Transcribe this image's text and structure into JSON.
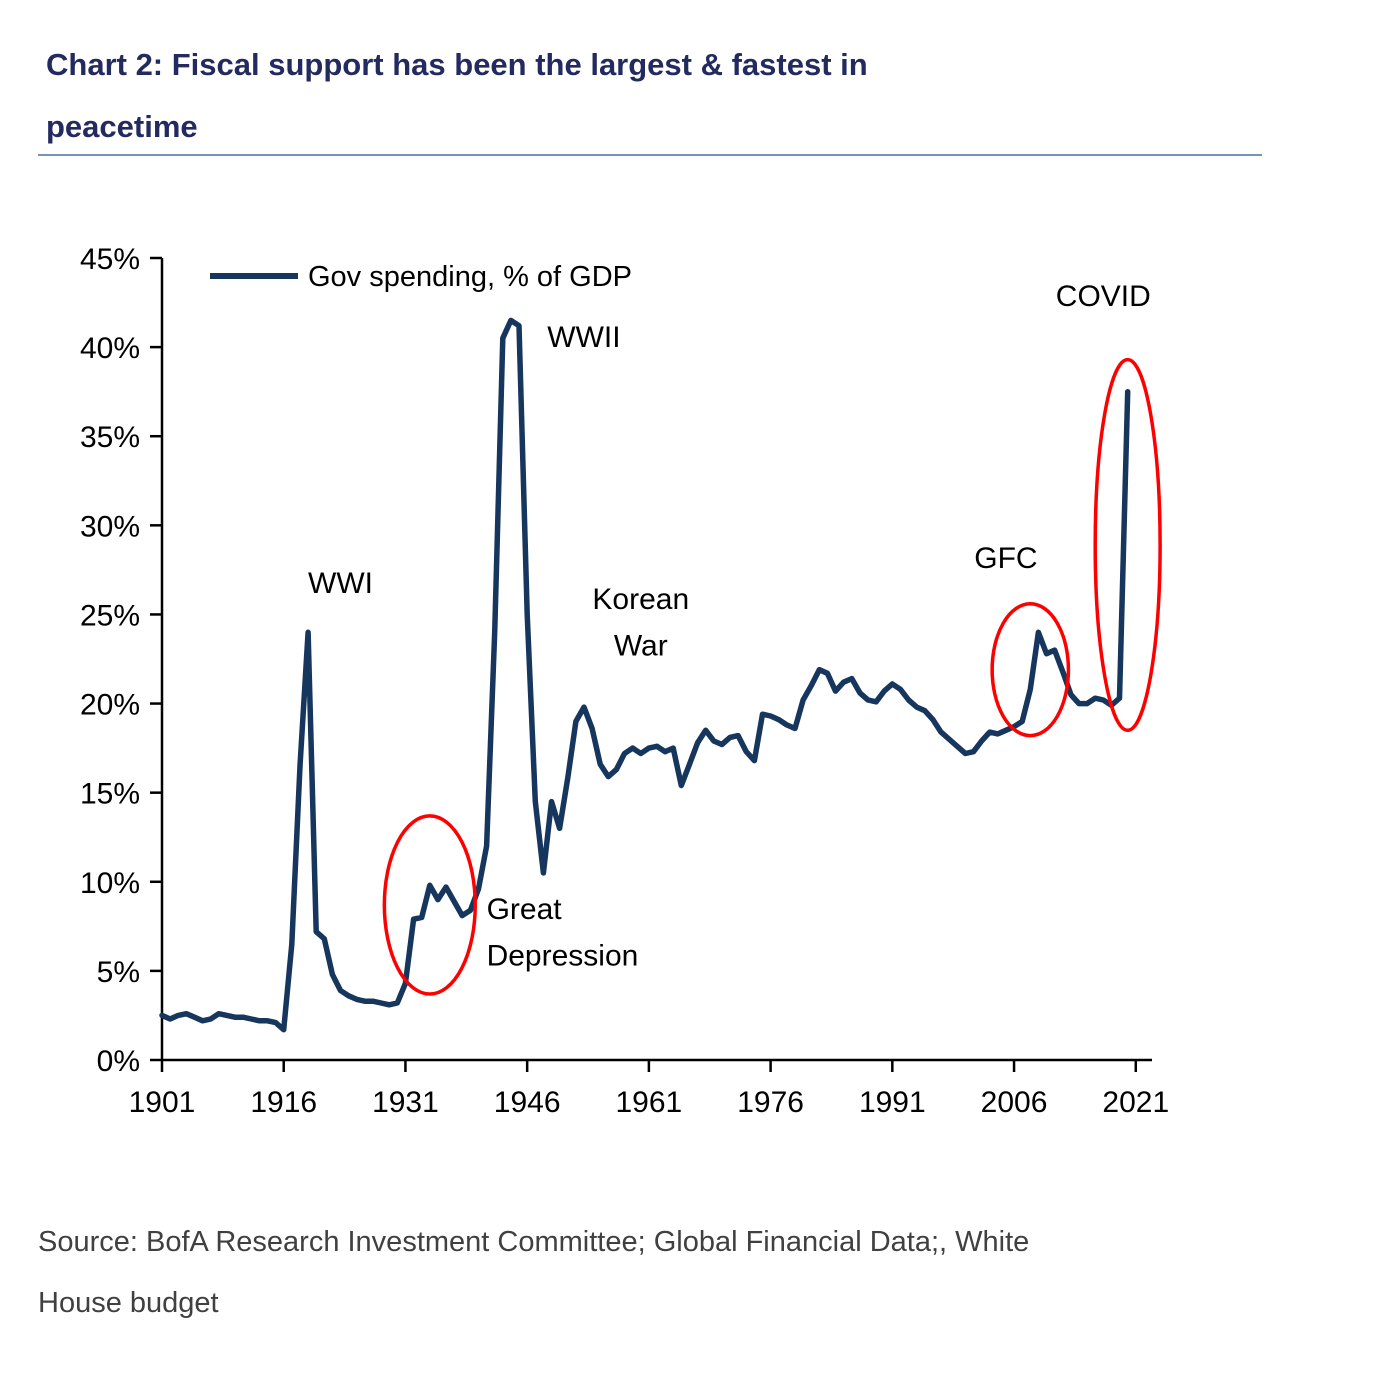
{
  "title": {
    "line1": "Chart 2: Fiscal support has been the largest & fastest in",
    "line2": "peacetime"
  },
  "source": {
    "line1": "Source: BofA Research Investment Committee; Global Financial Data;, White",
    "line2": "House budget"
  },
  "legend": {
    "label": "Gov spending, % of GDP"
  },
  "colors": {
    "line": "#17365d",
    "title": "#232a60",
    "divider": "#7693b8",
    "highlight": "#ff0000",
    "axis": "#000000",
    "tick_text": "#000000",
    "annotation_text": "#000000",
    "source_text": "#404040",
    "background": "#ffffff"
  },
  "chart_data": {
    "type": "line",
    "title": "Chart 2: Fiscal support has been the largest & fastest in peacetime",
    "xlabel": "",
    "ylabel": "Gov spending, % of GDP",
    "x_domain": [
      1901,
      2023
    ],
    "y_domain": [
      0,
      45
    ],
    "x_ticks": [
      1901,
      1916,
      1931,
      1946,
      1961,
      1976,
      1991,
      2006,
      2021
    ],
    "y_ticks": [
      0,
      5,
      10,
      15,
      20,
      25,
      30,
      35,
      40,
      45
    ],
    "y_tick_suffix": "%",
    "grid": false,
    "legend_position": "top-left-inside",
    "series": [
      {
        "name": "Gov spending, % of GDP",
        "points": [
          [
            1901,
            2.5
          ],
          [
            1902,
            2.3
          ],
          [
            1903,
            2.5
          ],
          [
            1904,
            2.6
          ],
          [
            1905,
            2.4
          ],
          [
            1906,
            2.2
          ],
          [
            1907,
            2.3
          ],
          [
            1908,
            2.6
          ],
          [
            1909,
            2.5
          ],
          [
            1910,
            2.4
          ],
          [
            1911,
            2.4
          ],
          [
            1912,
            2.3
          ],
          [
            1913,
            2.2
          ],
          [
            1914,
            2.2
          ],
          [
            1915,
            2.1
          ],
          [
            1916,
            1.7
          ],
          [
            1917,
            6.5
          ],
          [
            1918,
            16.5
          ],
          [
            1919,
            24.0
          ],
          [
            1920,
            7.2
          ],
          [
            1921,
            6.8
          ],
          [
            1922,
            4.8
          ],
          [
            1923,
            3.9
          ],
          [
            1924,
            3.6
          ],
          [
            1925,
            3.4
          ],
          [
            1926,
            3.3
          ],
          [
            1927,
            3.3
          ],
          [
            1928,
            3.2
          ],
          [
            1929,
            3.1
          ],
          [
            1930,
            3.2
          ],
          [
            1931,
            4.3
          ],
          [
            1932,
            7.9
          ],
          [
            1933,
            8.0
          ],
          [
            1934,
            9.8
          ],
          [
            1935,
            9.0
          ],
          [
            1936,
            9.7
          ],
          [
            1937,
            8.9
          ],
          [
            1938,
            8.1
          ],
          [
            1939,
            8.4
          ],
          [
            1940,
            9.6
          ],
          [
            1941,
            12.0
          ],
          [
            1942,
            24.0
          ],
          [
            1943,
            40.5
          ],
          [
            1944,
            41.5
          ],
          [
            1945,
            41.2
          ],
          [
            1946,
            25.0
          ],
          [
            1947,
            14.5
          ],
          [
            1948,
            10.5
          ],
          [
            1949,
            14.5
          ],
          [
            1950,
            13.0
          ],
          [
            1951,
            15.8
          ],
          [
            1952,
            19.0
          ],
          [
            1953,
            19.8
          ],
          [
            1954,
            18.6
          ],
          [
            1955,
            16.6
          ],
          [
            1956,
            15.9
          ],
          [
            1957,
            16.3
          ],
          [
            1958,
            17.2
          ],
          [
            1959,
            17.5
          ],
          [
            1960,
            17.2
          ],
          [
            1961,
            17.5
          ],
          [
            1962,
            17.6
          ],
          [
            1963,
            17.3
          ],
          [
            1964,
            17.5
          ],
          [
            1965,
            15.4
          ],
          [
            1966,
            16.6
          ],
          [
            1967,
            17.8
          ],
          [
            1968,
            18.5
          ],
          [
            1969,
            17.9
          ],
          [
            1970,
            17.7
          ],
          [
            1971,
            18.1
          ],
          [
            1972,
            18.2
          ],
          [
            1973,
            17.3
          ],
          [
            1974,
            16.8
          ],
          [
            1975,
            19.4
          ],
          [
            1976,
            19.3
          ],
          [
            1977,
            19.1
          ],
          [
            1978,
            18.8
          ],
          [
            1979,
            18.6
          ],
          [
            1980,
            20.2
          ],
          [
            1981,
            21.0
          ],
          [
            1982,
            21.9
          ],
          [
            1983,
            21.7
          ],
          [
            1984,
            20.7
          ],
          [
            1985,
            21.2
          ],
          [
            1986,
            21.4
          ],
          [
            1987,
            20.6
          ],
          [
            1988,
            20.2
          ],
          [
            1989,
            20.1
          ],
          [
            1990,
            20.7
          ],
          [
            1991,
            21.1
          ],
          [
            1992,
            20.8
          ],
          [
            1993,
            20.2
          ],
          [
            1994,
            19.8
          ],
          [
            1995,
            19.6
          ],
          [
            1996,
            19.1
          ],
          [
            1997,
            18.4
          ],
          [
            1998,
            18.0
          ],
          [
            1999,
            17.6
          ],
          [
            2000,
            17.2
          ],
          [
            2001,
            17.3
          ],
          [
            2002,
            17.9
          ],
          [
            2003,
            18.4
          ],
          [
            2004,
            18.3
          ],
          [
            2005,
            18.5
          ],
          [
            2006,
            18.7
          ],
          [
            2007,
            19.0
          ],
          [
            2008,
            20.8
          ],
          [
            2009,
            24.0
          ],
          [
            2010,
            22.8
          ],
          [
            2011,
            23.0
          ],
          [
            2012,
            21.8
          ],
          [
            2013,
            20.5
          ],
          [
            2014,
            20.0
          ],
          [
            2015,
            20.0
          ],
          [
            2016,
            20.3
          ],
          [
            2017,
            20.2
          ],
          [
            2018,
            19.9
          ],
          [
            2019,
            20.3
          ],
          [
            2020,
            37.5
          ]
        ]
      }
    ],
    "annotations": [
      {
        "name": "wwi-label",
        "lines": [
          "WWI"
        ],
        "x": 1923,
        "y": 26.2,
        "anchor": "middle"
      },
      {
        "name": "wwii-label",
        "lines": [
          "WWII"
        ],
        "x": 1953,
        "y": 40.0,
        "anchor": "middle"
      },
      {
        "name": "korean-war-label",
        "lines": [
          "Korean",
          "War"
        ],
        "x": 1960,
        "y": 25.3,
        "anchor": "middle"
      },
      {
        "name": "great-depression-label",
        "lines": [
          "Great",
          "Depression"
        ],
        "x": 1941,
        "y": 7.9,
        "anchor": "start"
      },
      {
        "name": "gfc-label",
        "lines": [
          "GFC"
        ],
        "x": 2005,
        "y": 27.6,
        "anchor": "middle"
      },
      {
        "name": "covid-label",
        "lines": [
          "COVID"
        ],
        "x": 2017,
        "y": 42.3,
        "anchor": "middle"
      }
    ],
    "highlight_ellipses": [
      {
        "name": "great-depression-circle",
        "cx": 1934,
        "cy": 8.7,
        "rx_years": 5.6,
        "ry_pct": 5.0
      },
      {
        "name": "gfc-circle",
        "cx": 2008,
        "cy": 21.9,
        "rx_years": 4.7,
        "ry_pct": 3.7
      },
      {
        "name": "covid-circle",
        "cx": 2020,
        "cy": 28.9,
        "rx_years": 4.0,
        "ry_pct": 10.4
      }
    ]
  }
}
